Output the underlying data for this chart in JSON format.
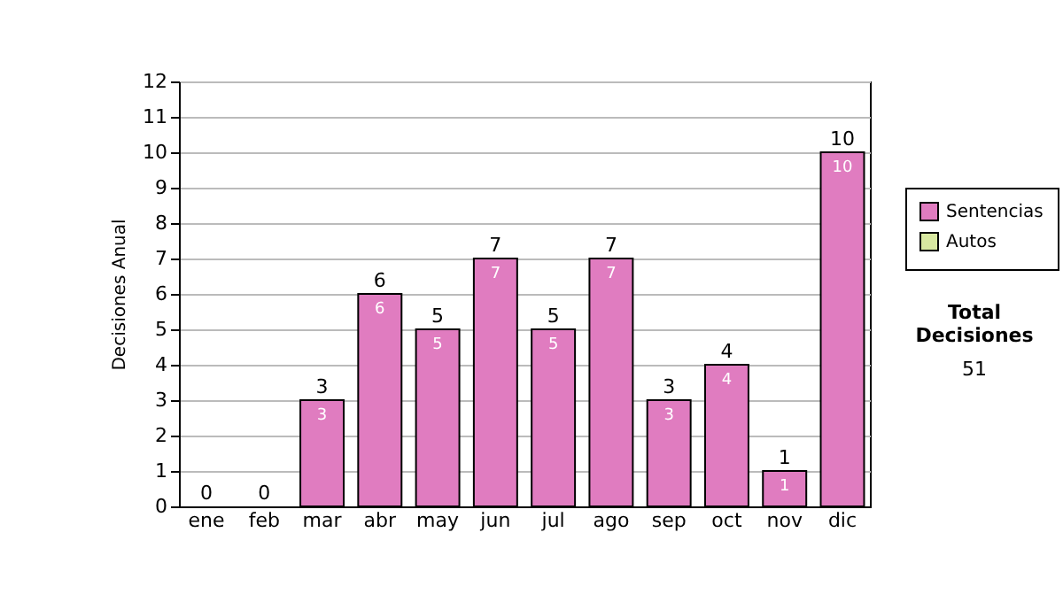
{
  "chart_data": {
    "type": "bar",
    "stacked": true,
    "ylabel": "Decisiones Anual",
    "categories": [
      "ene",
      "feb",
      "mar",
      "abr",
      "may",
      "jun",
      "jul",
      "ago",
      "sep",
      "oct",
      "nov",
      "dic"
    ],
    "series": [
      {
        "name": "Sentencias",
        "color": "#e07cc0",
        "values": [
          0,
          0,
          3,
          6,
          5,
          7,
          5,
          7,
          3,
          4,
          1,
          10
        ],
        "value_labels": [
          null,
          null,
          "3",
          "6",
          "5",
          "7",
          "5",
          "7",
          "3",
          "4",
          "1",
          "10"
        ]
      },
      {
        "name": "Autos",
        "color": "#d8e8a0",
        "values": [
          0,
          0,
          0,
          0,
          0,
          0,
          0,
          0,
          0,
          0,
          0,
          0
        ]
      }
    ],
    "totals": [
      "0",
      "0",
      "3",
      "6",
      "5",
      "7",
      "5",
      "7",
      "3",
      "4",
      "1",
      "10"
    ],
    "ylim": [
      0,
      12
    ],
    "yticks": [
      0,
      1,
      2,
      3,
      4,
      5,
      6,
      7,
      8,
      9,
      10,
      11,
      12
    ],
    "grid": "y",
    "legend": "right",
    "annotations": [
      "Total Decisiones",
      "51"
    ]
  }
}
